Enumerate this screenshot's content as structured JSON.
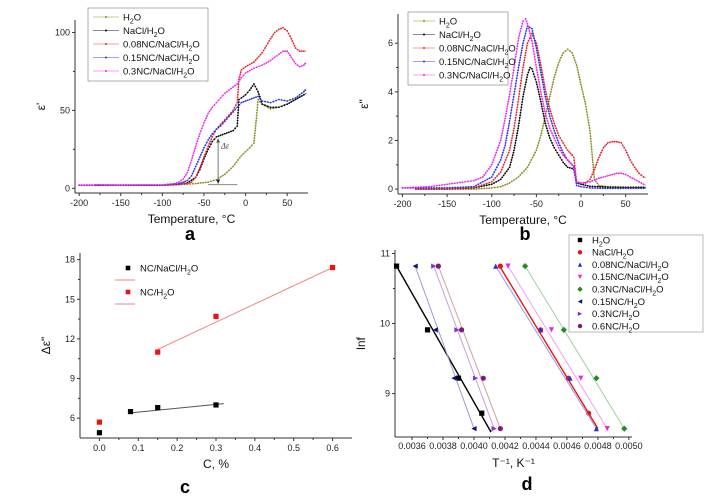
{
  "chart_data": [
    {
      "id": "a",
      "type": "line",
      "panel_label": "a",
      "xlabel": "Temperature, °C",
      "ylabel": "ε'",
      "xlim": [
        -205,
        75
      ],
      "ylim": [
        -3,
        108
      ],
      "xticks": [
        -200,
        -150,
        -100,
        -50,
        0,
        50
      ],
      "yticks": [
        0,
        50,
        100
      ],
      "legend_position": "top-left",
      "annotation": {
        "text": "Δε",
        "x": -33,
        "y_from": 3,
        "y_to": 32
      },
      "series": [
        {
          "name": "H2O",
          "color": "#8a8a1e",
          "x": [
            -180,
            -150,
            -120,
            -100,
            -80,
            -60,
            -45,
            -35,
            -25,
            -15,
            -5,
            5,
            10,
            13,
            15,
            20,
            30,
            40,
            50,
            60,
            70,
            73
          ],
          "y": [
            2,
            2,
            2,
            2,
            2.3,
            3,
            4,
            5.5,
            9,
            14,
            21,
            26,
            29,
            45,
            57,
            54,
            51,
            52,
            54,
            57,
            60,
            61
          ]
        },
        {
          "name": "NaCl/H2O",
          "color": "#000000",
          "x": [
            -180,
            -150,
            -100,
            -80,
            -70,
            -60,
            -55,
            -50,
            -45,
            -40,
            -35,
            -30,
            -25,
            -20,
            -15,
            -10,
            -8,
            -5,
            0,
            5,
            10,
            15,
            20,
            30,
            40,
            50,
            60,
            70,
            73
          ],
          "y": [
            2,
            2,
            2,
            2.5,
            3.5,
            7,
            12,
            19,
            25,
            30,
            33,
            34,
            35,
            36,
            37,
            40,
            57,
            58,
            60,
            63,
            67,
            62,
            54,
            52,
            52,
            54,
            57,
            60,
            61
          ]
        },
        {
          "name": "0.08NC/NaCl/H2O",
          "color": "#e8202a",
          "x": [
            -200,
            -150,
            -100,
            -80,
            -70,
            -65,
            -60,
            -55,
            -50,
            -45,
            -40,
            -35,
            -30,
            -25,
            -20,
            -15,
            -10,
            -8,
            -5,
            0,
            10,
            20,
            30,
            35,
            40,
            45,
            50,
            55,
            60,
            65,
            70,
            73
          ],
          "y": [
            2,
            2,
            2,
            2.5,
            3,
            4,
            7,
            13,
            20,
            27,
            33,
            38,
            41,
            44,
            47,
            50,
            55,
            70,
            76,
            78,
            81,
            87,
            96,
            100,
            102,
            103,
            101,
            96,
            90,
            88,
            88,
            88
          ]
        },
        {
          "name": "0.15NC/NaCl/H2O",
          "color": "#2233dd",
          "x": [
            -200,
            -150,
            -100,
            -80,
            -75,
            -70,
            -65,
            -60,
            -55,
            -50,
            -45,
            -40,
            -35,
            -30,
            -25,
            -20,
            -15,
            -10,
            -5,
            0,
            5,
            10,
            15,
            20,
            30,
            40,
            50,
            60,
            70,
            73
          ],
          "y": [
            2,
            2,
            2,
            3,
            4,
            5,
            8,
            14,
            20,
            26,
            31,
            35,
            38,
            40,
            43,
            46,
            49,
            52,
            55,
            56,
            57,
            58,
            59,
            56,
            55,
            57,
            56,
            58,
            62,
            64
          ]
        },
        {
          "name": "0.3NC/NaCl/H2O",
          "color": "#ee22ee",
          "x": [
            -200,
            -150,
            -100,
            -85,
            -80,
            -75,
            -70,
            -65,
            -60,
            -55,
            -50,
            -45,
            -40,
            -35,
            -30,
            -25,
            -20,
            -15,
            -10,
            -5,
            0,
            10,
            20,
            30,
            40,
            45,
            50,
            55,
            60,
            65,
            70,
            73
          ],
          "y": [
            2,
            2,
            2.3,
            3,
            4,
            6,
            10,
            18,
            27,
            35,
            42,
            48,
            52,
            55,
            58,
            61,
            63,
            65,
            67,
            71,
            74,
            77,
            79,
            82,
            86,
            88,
            88,
            84,
            80,
            78,
            79,
            81
          ]
        }
      ]
    },
    {
      "id": "b",
      "type": "line",
      "panel_label": "b",
      "xlabel": "Temperature, °C",
      "ylabel": "ε\"",
      "xlim": [
        -205,
        75
      ],
      "ylim": [
        -0.2,
        7.2
      ],
      "xticks": [
        -200,
        -150,
        -100,
        -50,
        0,
        50
      ],
      "yticks": [
        0,
        2,
        4,
        6
      ],
      "legend_position": "top-left",
      "series": [
        {
          "name": "H2O",
          "color": "#8a8a1e",
          "x": [
            -185,
            -150,
            -120,
            -100,
            -90,
            -80,
            -70,
            -60,
            -50,
            -45,
            -40,
            -35,
            -30,
            -25,
            -20,
            -15,
            -10,
            -5,
            0,
            5,
            10,
            13,
            15,
            20,
            30,
            50,
            73
          ],
          "y": [
            0,
            0,
            0,
            0.05,
            0.1,
            0.25,
            0.5,
            0.9,
            1.6,
            2.2,
            3,
            3.8,
            4.6,
            5.2,
            5.6,
            5.75,
            5.6,
            5.1,
            4.3,
            3.5,
            2.4,
            1.2,
            0.4,
            0.15,
            0.1,
            0.08,
            0.08
          ]
        },
        {
          "name": "NaCl/H2O",
          "color": "#000000",
          "x": [
            -185,
            -150,
            -120,
            -100,
            -90,
            -80,
            -75,
            -70,
            -65,
            -60,
            -57,
            -55,
            -50,
            -45,
            -40,
            -35,
            -30,
            -25,
            -20,
            -15,
            -10,
            -8,
            -5,
            0,
            10,
            30,
            50,
            73
          ],
          "y": [
            0,
            0,
            0.05,
            0.2,
            0.4,
            0.9,
            1.6,
            2.6,
            3.8,
            4.7,
            5,
            4.95,
            4.4,
            3.6,
            2.7,
            2.1,
            1.7,
            1.4,
            1.1,
            0.9,
            0.85,
            0.8,
            0.25,
            0.2,
            0.12,
            0.08,
            0.07,
            0.07
          ]
        },
        {
          "name": "0.08NC/NaCl/H2O",
          "color": "#e8202a",
          "x": [
            -185,
            -150,
            -120,
            -100,
            -90,
            -80,
            -75,
            -70,
            -65,
            -60,
            -55,
            -50,
            -45,
            -40,
            -35,
            -30,
            -25,
            -20,
            -15,
            -10,
            -8,
            -5,
            0,
            5,
            10,
            15,
            20,
            25,
            30,
            35,
            40,
            45,
            50,
            55,
            60,
            65,
            70,
            73
          ],
          "y": [
            0,
            0,
            0.05,
            0.3,
            0.7,
            1.6,
            2.5,
            3.7,
            5,
            6,
            6.4,
            6,
            5.1,
            4.1,
            3.3,
            2.7,
            2.2,
            1.9,
            1.6,
            1.4,
            1.3,
            0.3,
            0.25,
            0.25,
            0.4,
            0.8,
            1.3,
            1.7,
            1.9,
            1.95,
            1.95,
            1.9,
            1.6,
            1.2,
            0.9,
            0.65,
            0.5,
            0.45
          ]
        },
        {
          "name": "0.15NC/NaCl/H2O",
          "color": "#2233dd",
          "x": [
            -200,
            -150,
            -120,
            -100,
            -90,
            -85,
            -80,
            -75,
            -70,
            -65,
            -60,
            -55,
            -50,
            -45,
            -40,
            -35,
            -30,
            -25,
            -20,
            -15,
            -10,
            -8,
            -5,
            0,
            10,
            30,
            50,
            73
          ],
          "y": [
            0.05,
            0.05,
            0.1,
            0.5,
            1.2,
            1.8,
            2.8,
            3.9,
            5,
            6,
            6.7,
            6.6,
            5.8,
            4.8,
            3.8,
            3,
            2.4,
            1.9,
            1.5,
            1.2,
            1,
            0.9,
            0.15,
            0.1,
            0.05,
            0.03,
            0.03,
            0.03
          ]
        },
        {
          "name": "0.3NC/NaCl/H2O",
          "color": "#ee22ee",
          "x": [
            -200,
            -170,
            -150,
            -130,
            -120,
            -110,
            -100,
            -90,
            -85,
            -80,
            -75,
            -70,
            -65,
            -62,
            -60,
            -55,
            -50,
            -45,
            -40,
            -35,
            -30,
            -25,
            -20,
            -15,
            -10,
            -8,
            -5,
            0,
            10,
            20,
            30,
            40,
            45,
            50,
            60,
            70,
            73
          ],
          "y": [
            0.05,
            0.1,
            0.2,
            0.3,
            0.35,
            0.5,
            1,
            2,
            2.9,
            3.9,
            5,
            6.2,
            6.9,
            7,
            6.8,
            6.1,
            5,
            4,
            3.1,
            2.5,
            2.1,
            1.7,
            1.4,
            1.2,
            1,
            0.95,
            0.3,
            0.25,
            0.3,
            0.45,
            0.55,
            0.65,
            0.65,
            0.6,
            0.4,
            0.2,
            0.15
          ]
        }
      ]
    },
    {
      "id": "c",
      "type": "scatter",
      "panel_label": "c",
      "xlabel": "C, %",
      "ylabel": "Δε\"",
      "xlim": [
        -0.05,
        0.65
      ],
      "ylim": [
        4.5,
        18.5
      ],
      "xticks": [
        0.0,
        0.1,
        0.2,
        0.3,
        0.4,
        0.5,
        0.6
      ],
      "yticks": [
        6,
        9,
        12,
        15,
        18
      ],
      "legend_position": "top-left",
      "series": [
        {
          "name": "NC/NaCl/H2O",
          "color": "#000000",
          "marker": "square",
          "x": [
            0.0,
            0.08,
            0.15,
            0.3
          ],
          "y": [
            4.9,
            6.5,
            6.8,
            7.0
          ],
          "fit": {
            "x": [
              0.08,
              0.32
            ],
            "y": [
              6.4,
              7.1
            ],
            "color": "#555555"
          }
        },
        {
          "name": "NC/H2O",
          "color": "#ee1111",
          "marker": "square",
          "x": [
            0.0,
            0.15,
            0.3,
            0.6
          ],
          "y": [
            5.7,
            11.0,
            13.7,
            17.4
          ],
          "fit": {
            "x": [
              0.15,
              0.6
            ],
            "y": [
              11.2,
              17.4
            ],
            "color": "#f08080"
          }
        }
      ]
    },
    {
      "id": "d",
      "type": "scatter",
      "panel_label": "d",
      "xlabel": "T⁻¹, K⁻¹",
      "ylabel": "lnf",
      "xlim": [
        0.00349,
        0.00502
      ],
      "ylim": [
        8.38,
        11.05
      ],
      "xticks": [
        0.0036,
        0.0038,
        0.004,
        0.0042,
        0.0044,
        0.0046,
        0.0048,
        0.005
      ],
      "xtick_labels": [
        "0.0036",
        "0.0038",
        "0.0040",
        "0.0042",
        "0.0044",
        "0.0046",
        "0.0048",
        "0.0050"
      ],
      "yticks": [
        9,
        10,
        11
      ],
      "legend_position": "top-right",
      "series": [
        {
          "name": "H2O",
          "color": "#000000",
          "marker": "square",
          "x": [
            0.0035,
            0.0037,
            0.0039,
            0.00405
          ],
          "y": [
            10.82,
            9.91,
            9.22,
            8.72
          ],
          "fit": {
            "x": [
              0.0035,
              0.00411
            ],
            "y": [
              10.82,
              8.45
            ],
            "color": "#000000"
          }
        },
        {
          "name": "NaCl/H2O",
          "color": "#ee1111",
          "marker": "circle",
          "x": [
            0.00417,
            0.00443,
            0.00461,
            0.00474
          ],
          "y": [
            10.82,
            9.91,
            9.22,
            8.72
          ],
          "fit": {
            "x": [
              0.00416,
              0.0048
            ],
            "y": [
              10.84,
              8.5
            ],
            "color": "#ee1111"
          }
        },
        {
          "name": "0.08NC/NaCl/H2O",
          "color": "#2233dd",
          "marker": "triangle-up",
          "x": [
            0.00414,
            0.00443,
            0.00462,
            0.00479
          ],
          "y": [
            10.82,
            9.91,
            9.22,
            8.5
          ],
          "fit": {
            "x": [
              0.00414,
              0.00479
            ],
            "y": [
              10.82,
              8.5
            ],
            "color": "#9999ee"
          }
        },
        {
          "name": "0.15NC/NaCl/H2O",
          "color": "#ee22ee",
          "marker": "triangle-down",
          "x": [
            0.00422,
            0.0045,
            0.00469,
            0.00486
          ],
          "y": [
            10.82,
            9.91,
            9.22,
            8.5
          ],
          "fit": {
            "x": [
              0.00422,
              0.00486
            ],
            "y": [
              10.82,
              8.5
            ],
            "color": "#f0a0f0"
          }
        },
        {
          "name": "0.3NC/NaCl/H2O",
          "color": "#228b22",
          "marker": "diamond",
          "x": [
            0.00433,
            0.00458,
            0.00479,
            0.00497
          ],
          "y": [
            10.82,
            9.91,
            9.22,
            8.5
          ],
          "fit": {
            "x": [
              0.00433,
              0.00497
            ],
            "y": [
              10.82,
              8.5
            ],
            "color": "#a0cfa0"
          }
        },
        {
          "name": "0.15NC/H2O",
          "color": "#101080",
          "marker": "triangle-left",
          "x": [
            0.00362,
            0.00375,
            0.00387,
            0.004
          ],
          "y": [
            10.82,
            9.91,
            9.22,
            8.5
          ],
          "fit": {
            "x": [
              0.00362,
              0.004
            ],
            "y": [
              10.82,
              8.5
            ],
            "color": "#9a9ad0"
          }
        },
        {
          "name": "0.3NC/H2O",
          "color": "#8a2be2",
          "marker": "triangle-right",
          "x": [
            0.00374,
            0.00389,
            0.00401,
            0.00413
          ],
          "y": [
            10.82,
            9.91,
            9.22,
            8.5
          ],
          "fit": {
            "x": [
              0.00374,
              0.00413
            ],
            "y": [
              10.82,
              8.5
            ],
            "color": "#c8a0d8"
          }
        },
        {
          "name": "0.6NC/H2O",
          "color": "#7a1a7a",
          "marker": "circle",
          "x": [
            0.00377,
            0.00392,
            0.00406,
            0.00417
          ],
          "y": [
            10.82,
            9.91,
            9.22,
            8.5
          ],
          "fit": {
            "x": [
              0.00377,
              0.00417
            ],
            "y": [
              10.82,
              8.5
            ],
            "color": "#d0a0a0"
          }
        }
      ]
    }
  ]
}
